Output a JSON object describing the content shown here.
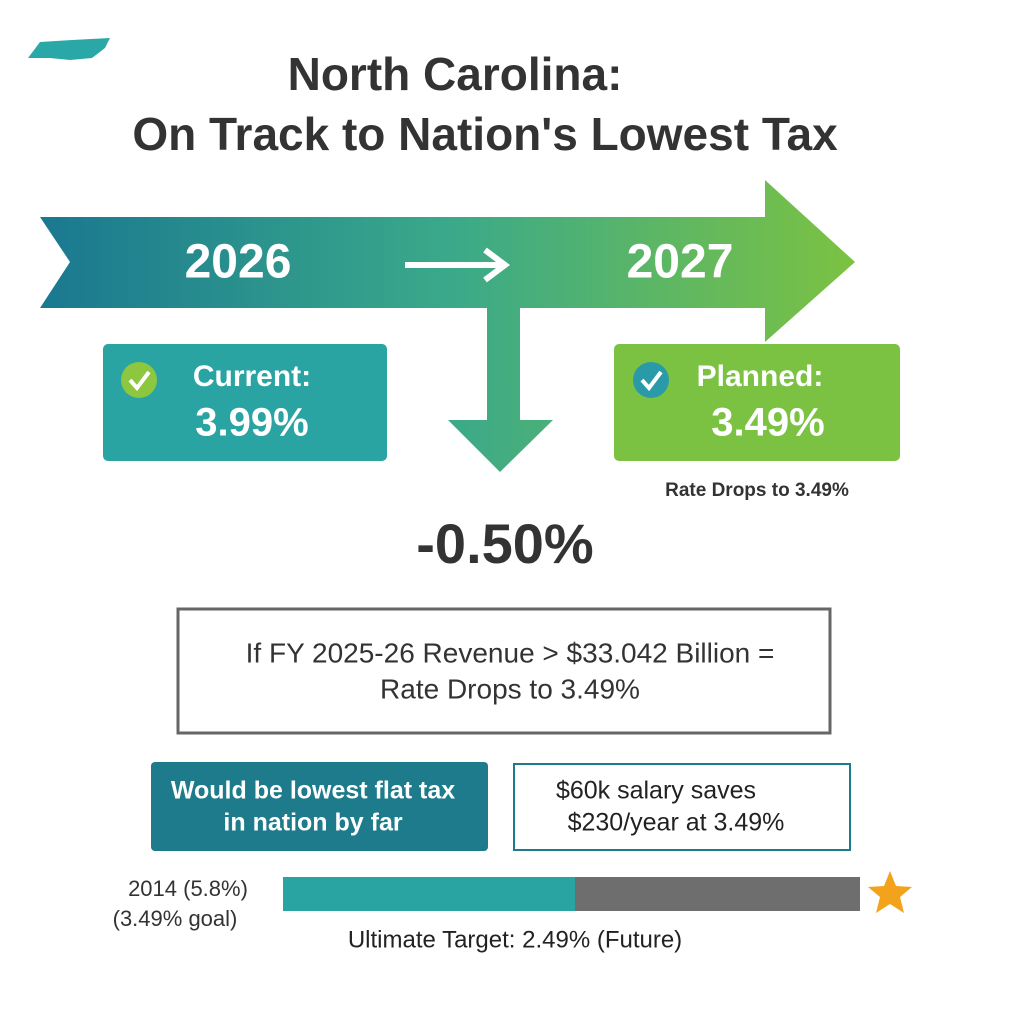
{
  "header": {
    "title_lines": [
      "North Carolina:",
      "On Track to Nation's Lowest Tax"
    ]
  },
  "timeline": {
    "from_year": "2026",
    "to_year": "2027"
  },
  "current": {
    "label": "Current:",
    "rate": "3.99%"
  },
  "planned": {
    "label": "Planned:",
    "rate": "3.49%",
    "note": "Rate Drops to 3.49%"
  },
  "change": "-0.50%",
  "condition": {
    "lines": [
      "If FY 2025-26 Revenue > $33.042 Billion =",
      "Rate Drops to 3.49%"
    ]
  },
  "facts": [
    {
      "lines": [
        "Would be lowest flat tax",
        "in nation by far"
      ]
    },
    {
      "lines": [
        "$60k salary saves",
        "$230/year at 3.49%"
      ]
    }
  ],
  "progress": {
    "start_lines": [
      "2014 (5.8%)",
      "(3.49% goal)"
    ],
    "target": "Ultimate Target: 2.49% (Future)"
  }
}
